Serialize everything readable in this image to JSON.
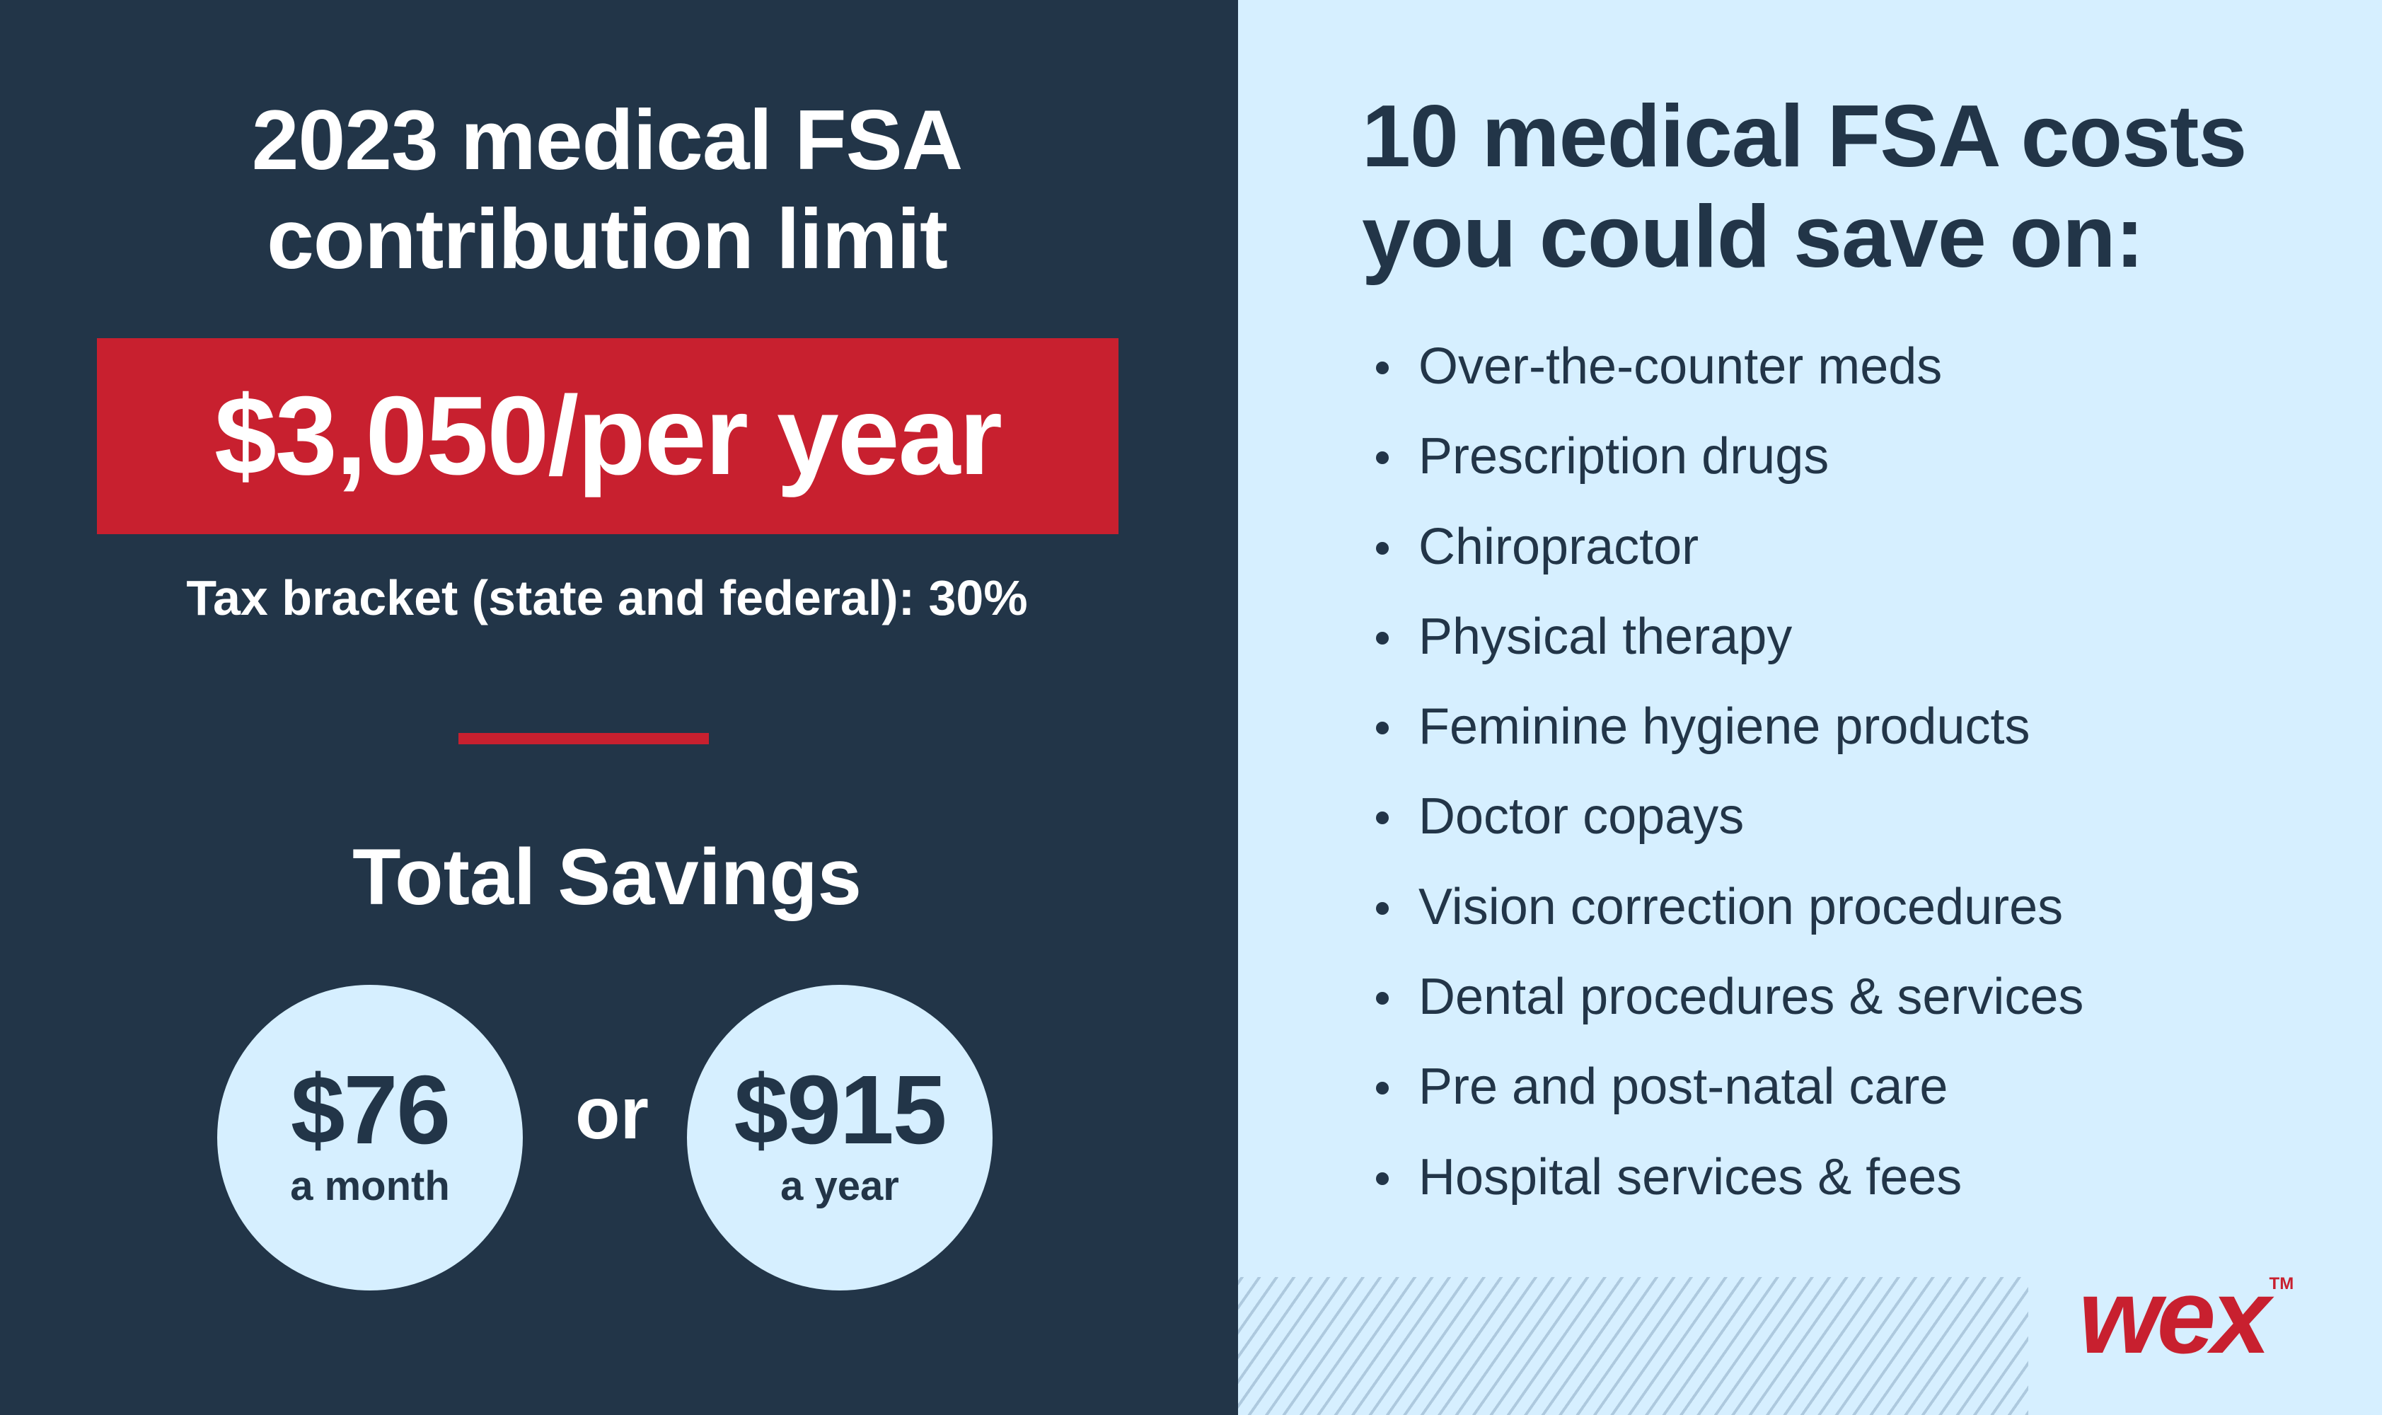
{
  "left_panel": {
    "title_line1": "2023 medical FSA",
    "title_line2": "contribution limit",
    "limit_amount": "$3,050/per year",
    "tax_bracket": "Tax bracket (state and federal): 30%",
    "savings_heading": "Total Savings",
    "monthly": {
      "amount": "$76",
      "label": "a month"
    },
    "connector": "or",
    "yearly": {
      "amount": "$915",
      "label": "a year"
    }
  },
  "right_panel": {
    "title_line1": "10 medical FSA costs",
    "title_line2": "you could save on:",
    "items": [
      "Over-the-counter meds",
      "Prescription drugs",
      "Chiropractor",
      "Physical therapy",
      "Feminine hygiene products",
      "Doctor copays",
      "Vision correction procedures",
      "Dental procedures & services",
      "Pre and post-natal care",
      "Hospital services & fees"
    ]
  },
  "brand": {
    "logo_text": "wex",
    "trademark": "TM"
  },
  "colors": {
    "navy": "#223548",
    "accent_red": "#c8202f",
    "light_blue": "#d6efff",
    "white": "#ffffff"
  }
}
